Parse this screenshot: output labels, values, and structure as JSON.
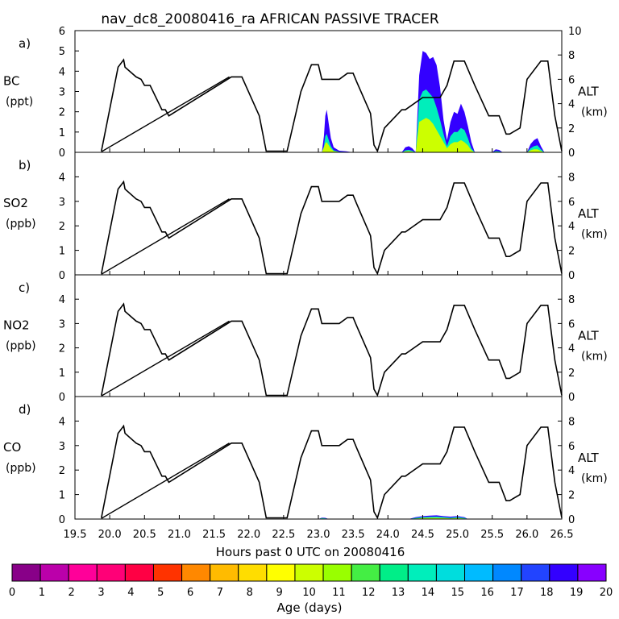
{
  "chart_data": {
    "type": "area",
    "title": "nav_dc8_20080416_ra AFRICAN PASSIVE TRACER",
    "xlabel": "Hours past 0 UTC on 20080416",
    "xlim": [
      19.5,
      26.5
    ],
    "xticks": [
      "19.5",
      "20.0",
      "20.5",
      "21.0",
      "21.5",
      "22.0",
      "22.5",
      "23.0",
      "23.5",
      "24.0",
      "24.5",
      "25.0",
      "25.5",
      "26.0",
      "26.5"
    ],
    "altitude_axis": {
      "label": "ALT",
      "units": "(km)"
    },
    "altitude_track": {
      "name": "ALT (km)",
      "x": [
        19.88,
        20.12,
        20.2,
        20.22,
        20.38,
        20.45,
        20.5,
        20.58,
        20.75,
        20.8,
        20.85,
        21.75,
        21.9,
        22.15,
        22.25,
        22.45,
        22.55,
        22.75,
        22.9,
        23.0,
        23.05,
        23.3,
        23.42,
        23.5,
        23.55,
        23.75,
        23.8,
        23.85,
        23.95,
        24.2,
        24.25,
        24.5,
        24.75,
        24.85,
        24.95,
        25.1,
        25.25,
        25.45,
        25.6,
        25.7,
        25.75,
        25.9,
        26.0,
        26.2,
        26.3,
        26.4,
        26.5
      ],
      "y": [
        0.1,
        7.0,
        7.6,
        7.0,
        6.2,
        6.0,
        5.5,
        5.5,
        3.5,
        3.5,
        3.0,
        6.2,
        6.2,
        3.0,
        0.1,
        0.1,
        0.1,
        5.0,
        7.2,
        7.2,
        6.0,
        6.0,
        6.5,
        6.5,
        5.8,
        3.2,
        0.6,
        0.1,
        2.0,
        3.5,
        3.5,
        4.5,
        4.5,
        5.5,
        7.5,
        7.5,
        5.5,
        3.0,
        3.0,
        1.5,
        1.5,
        2.0,
        6.0,
        7.5,
        7.5,
        3.0,
        0.1
      ]
    },
    "diagonal_segment": {
      "x": [
        19.88,
        21.72
      ],
      "y": [
        0.05,
        6.2
      ]
    },
    "colorbar": {
      "label": "Age (days)",
      "ticks": [
        "0",
        "1",
        "2",
        "3",
        "4",
        "5",
        "6",
        "7",
        "8",
        "9",
        "10",
        "11",
        "12",
        "13",
        "14",
        "15",
        "16",
        "17",
        "18",
        "19",
        "20"
      ],
      "colors": [
        "#880088",
        "#bb00aa",
        "#ff0099",
        "#ff0077",
        "#ff0044",
        "#ff3300",
        "#ff8800",
        "#ffbb00",
        "#ffdd00",
        "#ffff00",
        "#ccff00",
        "#99ff00",
        "#44ee44",
        "#00ee88",
        "#00eebb",
        "#00dddd",
        "#00bbff",
        "#0088ff",
        "#2244ff",
        "#3300ff",
        "#8800ff"
      ]
    },
    "panels": [
      {
        "letter": "a)",
        "species": "BC",
        "units": "(ppt)",
        "ylim": [
          0,
          6
        ],
        "yticks": [
          "0",
          "1",
          "2",
          "3",
          "4",
          "5",
          "6"
        ],
        "alt_ylim": [
          0,
          10
        ],
        "alt_ticks": [
          "0",
          "2",
          "4",
          "6",
          "8",
          "10"
        ],
        "tracer": [
          {
            "x": [
              23.05,
              23.08,
              23.1,
              23.12,
              23.15,
              23.18,
              23.22,
              23.3,
              23.4,
              23.5
            ],
            "total": [
              0,
              0.8,
              1.8,
              2.1,
              1.4,
              0.7,
              0.25,
              0.08,
              0.05,
              0
            ],
            "age16": [
              0,
              0.3,
              0.8,
              0.9,
              0.6,
              0.3,
              0.1,
              0.03,
              0.02,
              0
            ],
            "age11": [
              0,
              0.25,
              0.45,
              0.5,
              0.35,
              0.18,
              0.06,
              0.02,
              0.01,
              0
            ]
          },
          {
            "x": [
              24.2,
              24.25,
              24.3,
              24.35,
              24.4
            ],
            "total": [
              0,
              0.25,
              0.3,
              0.2,
              0
            ],
            "age16": [
              0,
              0.1,
              0.12,
              0.08,
              0
            ],
            "age11": [
              0,
              0.05,
              0.06,
              0.04,
              0
            ]
          },
          {
            "x": [
              24.4,
              24.45,
              24.5,
              24.55,
              24.6,
              24.65,
              24.7,
              24.75,
              24.8,
              24.85,
              24.9,
              24.95,
              25.0,
              25.05,
              25.1,
              25.15,
              25.2,
              25.25
            ],
            "total": [
              0,
              3.8,
              5.0,
              4.9,
              4.6,
              4.7,
              4.3,
              3.2,
              1.6,
              0.6,
              1.5,
              2.0,
              1.9,
              2.4,
              2.0,
              1.3,
              0.5,
              0
            ],
            "age16": [
              0,
              2.6,
              3.0,
              3.1,
              2.9,
              2.7,
              2.2,
              1.6,
              0.9,
              0.3,
              0.8,
              1.0,
              1.0,
              1.2,
              1.1,
              0.7,
              0.2,
              0
            ],
            "age11": [
              0,
              1.5,
              1.6,
              1.7,
              1.6,
              1.4,
              1.1,
              0.8,
              0.5,
              0.2,
              0.4,
              0.5,
              0.5,
              0.6,
              0.5,
              0.35,
              0.1,
              0
            ]
          },
          {
            "x": [
              25.5,
              25.55,
              25.6,
              25.65
            ],
            "total": [
              0,
              0.15,
              0.12,
              0
            ],
            "age16": [
              0,
              0.06,
              0.05,
              0
            ],
            "age11": [
              0,
              0.03,
              0.02,
              0
            ]
          },
          {
            "x": [
              26.0,
              26.05,
              26.1,
              26.15,
              26.2,
              26.25
            ],
            "total": [
              0,
              0.4,
              0.6,
              0.7,
              0.3,
              0
            ],
            "age16": [
              0,
              0.2,
              0.3,
              0.35,
              0.15,
              0
            ],
            "age11": [
              0,
              0.1,
              0.15,
              0.15,
              0.07,
              0
            ]
          }
        ]
      },
      {
        "letter": "b)",
        "species": "SO2",
        "units": "(ppb)",
        "ylim": [
          0,
          5
        ],
        "yticks": [
          "0",
          "1",
          "2",
          "3",
          "4"
        ],
        "alt_ylim": [
          0,
          10
        ],
        "alt_ticks": [
          "0",
          "2",
          "4",
          "6",
          "8"
        ],
        "tracer": []
      },
      {
        "letter": "c)",
        "species": "NO2",
        "units": "(ppb)",
        "ylim": [
          0,
          5
        ],
        "yticks": [
          "0",
          "1",
          "2",
          "3",
          "4"
        ],
        "alt_ylim": [
          0,
          10
        ],
        "alt_ticks": [
          "0",
          "2",
          "4",
          "6",
          "8"
        ],
        "tracer": []
      },
      {
        "letter": "d)",
        "species": "CO",
        "units": "(ppb)",
        "ylim": [
          0,
          5
        ],
        "yticks": [
          "0",
          "1",
          "2",
          "3",
          "4"
        ],
        "alt_ylim": [
          0,
          10
        ],
        "alt_ticks": [
          "0",
          "2",
          "4",
          "6",
          "8"
        ],
        "tracer": [
          {
            "x": [
              23.0,
              23.05,
              23.1,
              23.15
            ],
            "total": [
              0,
              0.06,
              0.05,
              0
            ],
            "age16": [
              0,
              0.04,
              0.03,
              0
            ],
            "age11": [
              0,
              0.02,
              0.01,
              0
            ]
          },
          {
            "x": [
              24.3,
              24.4,
              24.5,
              24.6,
              24.7,
              24.8,
              24.9,
              25.0,
              25.1,
              25.15
            ],
            "total": [
              0,
              0.08,
              0.12,
              0.14,
              0.15,
              0.12,
              0.1,
              0.12,
              0.08,
              0
            ],
            "age16": [
              0,
              0.05,
              0.08,
              0.09,
              0.1,
              0.08,
              0.06,
              0.08,
              0.05,
              0
            ],
            "age11": [
              0,
              0.02,
              0.04,
              0.05,
              0.05,
              0.04,
              0.03,
              0.04,
              0.02,
              0
            ]
          }
        ]
      }
    ]
  }
}
